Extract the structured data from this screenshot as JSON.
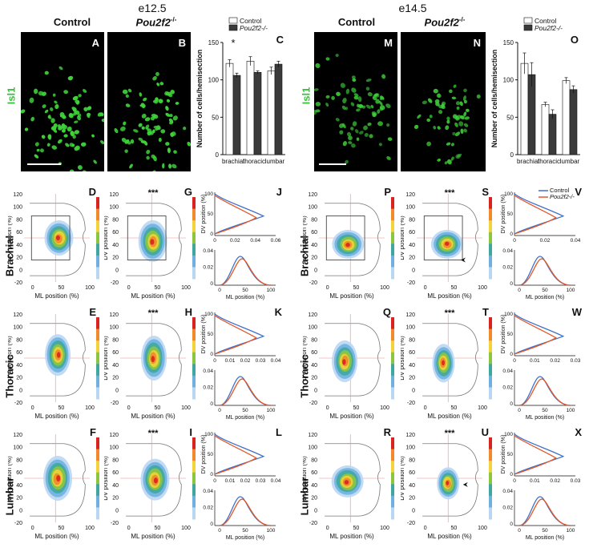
{
  "stages": [
    "e12.5",
    "e14.5"
  ],
  "column_headers": {
    "control": "Control",
    "mutant_prefix": "Pou2f2",
    "mutant_suffix": "-/-"
  },
  "marker": "Isl1",
  "row_labels": [
    "Brachial",
    "Thoracic",
    "Lumbar"
  ],
  "panel_letters": {
    "micro_e12": [
      "A",
      "B"
    ],
    "bar_e12": "C",
    "micro_e14": [
      "M",
      "N"
    ],
    "bar_e14": "O",
    "density_e12_control": [
      "D",
      "E",
      "F"
    ],
    "density_e12_mutant": [
      "G",
      "H",
      "I"
    ],
    "profiles_e12": [
      "J",
      "K",
      "L"
    ],
    "density_e14_control": [
      "P",
      "Q",
      "R"
    ],
    "density_e14_mutant": [
      "S",
      "T",
      "U"
    ],
    "profiles_e14": [
      "V",
      "W",
      "X"
    ]
  },
  "significance": {
    "bar_e12": "*",
    "density_mutant": "***"
  },
  "axes": {
    "ml": "ML position (%)",
    "dv": "DV position (%)",
    "count": "Number of cells/hemisection",
    "dv_ticks": [
      "120",
      "100",
      "80",
      "60",
      "40",
      "20",
      "0",
      "-20"
    ],
    "ml_ticks": [
      "0",
      "50",
      "100"
    ]
  },
  "legend": {
    "control": "Control",
    "mutant": "Pou2f2-/-"
  },
  "colors": {
    "control_line": "#3f6fc9",
    "mutant_line": "#e0582a",
    "control_bar": "#ffffff",
    "mutant_bar": "#3a3a3a",
    "isl1_green": "#39c33b"
  },
  "chart_data": [
    {
      "type": "bar",
      "panel": "C",
      "categories": [
        "brachial",
        "thoracic",
        "lumbar"
      ],
      "ylabel": "Number of cells/hemisection",
      "ylim": [
        0,
        150
      ],
      "yticks": [
        0,
        50,
        100,
        150
      ],
      "series": [
        {
          "name": "Control",
          "values": [
            122,
            125,
            112
          ],
          "errors": [
            5,
            6,
            5
          ]
        },
        {
          "name": "Pou2f2-/-",
          "values": [
            106,
            110,
            121
          ],
          "errors": [
            3,
            2,
            4
          ]
        }
      ]
    },
    {
      "type": "bar",
      "panel": "O",
      "categories": [
        "brachial",
        "thoracic",
        "lumbar"
      ],
      "ylabel": "Number of cells/hemisection",
      "ylim": [
        0,
        150
      ],
      "yticks": [
        0,
        50,
        100,
        150
      ],
      "series": [
        {
          "name": "Control",
          "values": [
            122,
            67,
            99
          ],
          "errors": [
            14,
            3,
            4
          ]
        },
        {
          "name": "Pou2f2-/-",
          "values": [
            107,
            54,
            87
          ],
          "errors": [
            16,
            6,
            5
          ]
        }
      ]
    }
  ],
  "profile_ticks": {
    "J": {
      "dv_x": [
        "0",
        "0.02",
        "0.04",
        "0.06"
      ],
      "ml_y": [
        "0",
        "0.02",
        "0.04"
      ]
    },
    "K": {
      "dv_x": [
        "0",
        "0.01",
        "0.02",
        "0.03",
        "0.04"
      ],
      "ml_y": [
        "0",
        "0.02",
        "0.04"
      ]
    },
    "L": {
      "dv_x": [
        "0",
        "0.01",
        "0.02",
        "0.03",
        "0.04"
      ],
      "ml_y": [
        "0",
        "0.02",
        "0.04"
      ]
    },
    "V": {
      "dv_x": [
        "0",
        "0.02",
        "0.04"
      ],
      "ml_y": [
        "0",
        "0.02",
        "0.04"
      ]
    },
    "W": {
      "dv_x": [
        "0",
        "0.01",
        "0.02",
        "0.03"
      ],
      "ml_y": [
        "0",
        "0.02",
        "0.04"
      ]
    },
    "X": {
      "dv_x": [
        "0",
        "0.01",
        "0.02",
        "0.03"
      ],
      "ml_y": [
        "0",
        "0.02",
        "0.04"
      ]
    }
  }
}
